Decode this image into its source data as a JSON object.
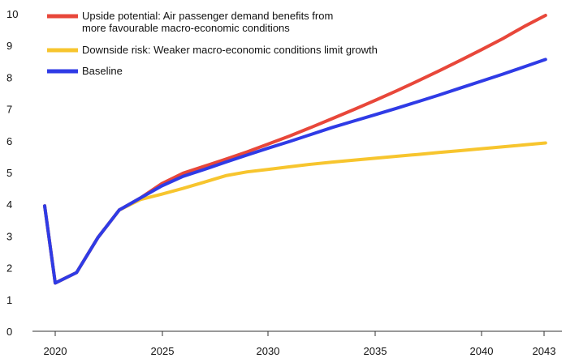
{
  "chart_data": {
    "type": "line",
    "title": "",
    "xlabel": "",
    "ylabel": "",
    "xlim": [
      2020,
      2043
    ],
    "ylim": [
      0,
      10
    ],
    "x_ticks": [
      2020,
      2025,
      2030,
      2035,
      2040,
      2043
    ],
    "y_ticks": [
      0,
      1,
      2,
      3,
      4,
      5,
      6,
      7,
      8,
      9,
      10
    ],
    "grid": false,
    "legend_position": "top-left",
    "series": [
      {
        "name": "Upside potential: Air passenger demand benefits from more favourable macro-economic conditions",
        "color": "#e8473a",
        "x": [
          2019,
          2020,
          2021,
          2022,
          2023,
          2024,
          2025,
          2026,
          2027,
          2028,
          2029,
          2030,
          2031,
          2032,
          2033,
          2034,
          2035,
          2036,
          2037,
          2038,
          2039,
          2040,
          2041,
          2042,
          2043
        ],
        "values": [
          3.95,
          1.52,
          1.85,
          2.95,
          3.82,
          4.2,
          4.65,
          4.98,
          5.2,
          5.42,
          5.65,
          5.9,
          6.15,
          6.42,
          6.7,
          6.98,
          7.27,
          7.57,
          7.88,
          8.2,
          8.53,
          8.87,
          9.22,
          9.6,
          9.95
        ]
      },
      {
        "name": "Downside risk: Weaker macro-economic conditions limit growth",
        "color": "#f7c52e",
        "x": [
          2019,
          2020,
          2021,
          2022,
          2023,
          2024,
          2025,
          2026,
          2027,
          2028,
          2029,
          2030,
          2031,
          2032,
          2033,
          2034,
          2035,
          2036,
          2037,
          2038,
          2039,
          2040,
          2041,
          2042,
          2043
        ],
        "values": [
          3.95,
          1.52,
          1.85,
          2.95,
          3.82,
          4.15,
          4.32,
          4.5,
          4.7,
          4.9,
          5.02,
          5.1,
          5.18,
          5.26,
          5.33,
          5.39,
          5.45,
          5.51,
          5.57,
          5.63,
          5.69,
          5.75,
          5.81,
          5.87,
          5.93
        ]
      },
      {
        "name": "Baseline",
        "color": "#2f3be6",
        "x": [
          2019,
          2020,
          2021,
          2022,
          2023,
          2024,
          2025,
          2026,
          2027,
          2028,
          2029,
          2030,
          2031,
          2032,
          2033,
          2034,
          2035,
          2036,
          2037,
          2038,
          2039,
          2040,
          2041,
          2042,
          2043
        ],
        "values": [
          3.95,
          1.52,
          1.85,
          2.95,
          3.82,
          4.2,
          4.58,
          4.88,
          5.1,
          5.33,
          5.55,
          5.77,
          5.98,
          6.2,
          6.42,
          6.62,
          6.82,
          7.02,
          7.23,
          7.44,
          7.66,
          7.88,
          8.1,
          8.33,
          8.56
        ]
      }
    ]
  }
}
